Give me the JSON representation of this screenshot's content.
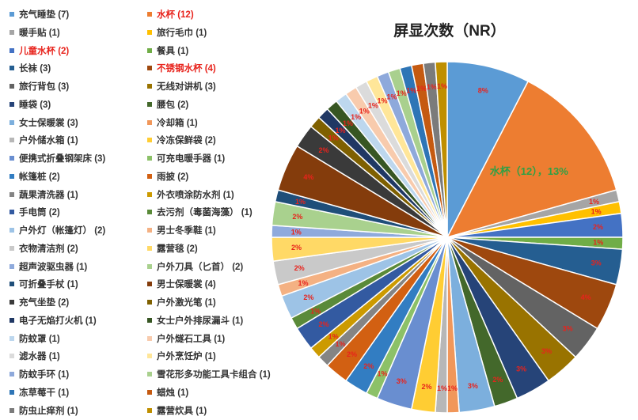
{
  "chart_data": {
    "type": "pie",
    "title": "屏显次数（NR）",
    "legend_position": "left",
    "highlighted": [
      "水杯",
      "儿童水杯",
      "不锈钢水杯"
    ],
    "callout": {
      "category": "水杯",
      "text": "水杯（12），13%"
    },
    "slices": [
      {
        "label": "充气睡垫（7）",
        "legend": "充气睡垫  (7)",
        "name": "充气睡垫",
        "value": 7,
        "pct": "8%",
        "color": "#5b9bd5"
      },
      {
        "label": "水杯（12）",
        "legend": "水杯  (12)",
        "name": "水杯",
        "value": 12,
        "pct": "13%",
        "color": "#ed7d31"
      },
      {
        "label": "暖手贴（1）",
        "legend": "暖手贴  (1)",
        "name": "暖手贴",
        "value": 1,
        "pct": "1%",
        "color": "#a5a5a5"
      },
      {
        "label": "旅行毛巾（1）",
        "legend": "旅行毛巾  (1)",
        "name": "旅行毛巾",
        "value": 1,
        "pct": "1%",
        "color": "#ffc000"
      },
      {
        "label": "儿童水杯（2）",
        "legend": "儿童水杯  (2)",
        "name": "儿童水杯",
        "value": 2,
        "pct": "2%",
        "color": "#4472c4"
      },
      {
        "label": "餐具（1）",
        "legend": "餐具  (1)",
        "name": "餐具",
        "value": 1,
        "pct": "1%",
        "color": "#70ad47"
      },
      {
        "label": "长袜（3）",
        "legend": "长袜  (3)",
        "name": "长袜",
        "value": 3,
        "pct": "3%",
        "color": "#255e91"
      },
      {
        "label": "不锈钢水杯（4）",
        "legend": "不锈钢水杯  (4)",
        "name": "不锈钢水杯",
        "value": 4,
        "pct": "4%",
        "color": "#9e480e"
      },
      {
        "label": "旅行背包（3）",
        "legend": "旅行背包  (3)",
        "name": "旅行背包",
        "value": 3,
        "pct": "3%",
        "color": "#636363"
      },
      {
        "label": "无线对讲机（3）",
        "legend": "无线对讲机  (3)",
        "name": "无线对讲机",
        "value": 3,
        "pct": "3%",
        "color": "#997300"
      },
      {
        "label": "睡袋（3）",
        "legend": "睡袋  (3)",
        "name": "睡袋",
        "value": 3,
        "pct": "3%",
        "color": "#264478"
      },
      {
        "label": "腰包（2）",
        "legend": "腰包  (2)",
        "name": "腰包",
        "value": 2,
        "pct": "2%",
        "color": "#43682b"
      },
      {
        "label": "女士保暖裳（3）",
        "legend": "女士保暖裳  (3)",
        "name": "女士保暖裳",
        "value": 3,
        "pct": "3%",
        "color": "#7cafdd"
      },
      {
        "label": "冷却箱（1）",
        "legend": "冷却箱  (1)",
        "name": "冷却箱",
        "value": 1,
        "pct": "1%",
        "color": "#f1975a"
      },
      {
        "label": "户外储水箱（1）",
        "legend": "户外储水箱  (1)",
        "name": "户外储水箱",
        "value": 1,
        "pct": "1%",
        "color": "#b7b7b7"
      },
      {
        "label": "冷冻保鲜袋（2）",
        "legend": "冷冻保鲜袋  (2)",
        "name": "冷冻保鲜袋",
        "value": 2,
        "pct": "2%",
        "color": "#ffcd33"
      },
      {
        "label": "便携式折叠钢架床（3）",
        "legend": "便携式折叠钢架床  (3)",
        "name": "便携式折叠钢架床",
        "value": 3,
        "pct": "3%",
        "color": "#698ed0"
      },
      {
        "label": "可充电暖手器（1）",
        "legend": "可充电暖手器  (1)",
        "name": "可充电暖手器",
        "value": 1,
        "pct": "1%",
        "color": "#8cc168"
      },
      {
        "label": "帐篷桩（2）",
        "legend": "帐篷桩  (2)",
        "name": "帐篷桩",
        "value": 2,
        "pct": "2%",
        "color": "#327dc2"
      },
      {
        "label": "雨披（2）",
        "legend": "雨披  (2)",
        "name": "雨披",
        "value": 2,
        "pct": "2%",
        "color": "#d26012"
      },
      {
        "label": "蔬果清洗器（1）",
        "legend": "蔬果清洗器  (1)",
        "name": "蔬果清洗器",
        "value": 1,
        "pct": "1%",
        "color": "#848484"
      },
      {
        "label": "外衣喷涂防水剂（1）",
        "legend": "外衣喷涂防水剂  (1)",
        "name": "外衣喷涂防水剂",
        "value": 1,
        "pct": "1%",
        "color": "#cc9a00"
      },
      {
        "label": "手电筒（2）",
        "legend": "手电筒  (2)",
        "name": "手电筒",
        "value": 2,
        "pct": "2%",
        "color": "#335aa1"
      },
      {
        "label": "去污剂（毒菌海藻）（1）",
        "legend": "去污剂（毒菌海藻）  (1)",
        "name": "去污剂（毒菌海藻）",
        "value": 1,
        "pct": "1%",
        "color": "#5a8a39"
      },
      {
        "label": "户外灯（帐篷灯）（2）",
        "legend": "户外灯（帐篷灯）  (2)",
        "name": "户外灯（帐篷灯）",
        "value": 2,
        "pct": "2%",
        "color": "#9dc3e6"
      },
      {
        "label": "男士冬季鞋（1）",
        "legend": "男士冬季鞋  (1)",
        "name": "男士冬季鞋",
        "value": 1,
        "pct": "1%",
        "color": "#f4b183"
      },
      {
        "label": "衣物清洁剂（2）",
        "legend": "衣物清洁剂  (2)",
        "name": "衣物清洁剂",
        "value": 2,
        "pct": "2%",
        "color": "#c9c9c9"
      },
      {
        "label": "露营毯（2）",
        "legend": "露营毯  (2)",
        "name": "露营毯",
        "value": 2,
        "pct": "2%",
        "color": "#ffd966"
      },
      {
        "label": "超声波驱虫器（1）",
        "legend": "超声波驱虫器  (1)",
        "name": "超声波驱虫器",
        "value": 1,
        "pct": "1%",
        "color": "#8faadc"
      },
      {
        "label": "户外刀具（匕首）（2）",
        "legend": "户外刀具（匕首）  (2)",
        "name": "户外刀具（匕首）",
        "value": 2,
        "pct": "2%",
        "color": "#a9d18e"
      },
      {
        "label": "可折叠手杖（1）",
        "legend": "可折叠手杖  (1)",
        "name": "可折叠手杖",
        "value": 1,
        "pct": "1%",
        "color": "#1f4e79"
      },
      {
        "label": "男士保暖裳（4）",
        "legend": "男士保暖裳  (4)",
        "name": "男士保暖裳",
        "value": 4,
        "pct": "4%",
        "color": "#843c0c"
      },
      {
        "label": "充气坐垫（2）",
        "legend": "充气坐垫  (2)",
        "name": "充气坐垫",
        "value": 2,
        "pct": "2%",
        "color": "#3a3a3a"
      },
      {
        "label": "户外激光笔（1）",
        "legend": "户外激光笔  (1)",
        "name": "户外激光笔",
        "value": 1,
        "pct": "1%",
        "color": "#7f6000"
      },
      {
        "label": "电子无焰打火机（1）",
        "legend": "电子无焰打火机  (1)",
        "name": "电子无焰打火机",
        "value": 1,
        "pct": "1%",
        "color": "#203864"
      },
      {
        "label": "女士户外排尿漏斗（1）",
        "legend": "女士户外排尿漏斗  (1)",
        "name": "女士户外排尿漏斗",
        "value": 1,
        "pct": "1%",
        "color": "#375623"
      },
      {
        "label": "防蚊罩（1）",
        "legend": "防蚊罩  (1)",
        "name": "防蚊罩",
        "value": 1,
        "pct": "1%",
        "color": "#bdd7ee"
      },
      {
        "label": "户外燧石工具（1）",
        "legend": "户外燧石工具  (1)",
        "name": "户外燧石工具",
        "value": 1,
        "pct": "1%",
        "color": "#f8cbad"
      },
      {
        "label": "滤水器（1）",
        "legend": "滤水器  (1)",
        "name": "滤水器",
        "value": 1,
        "pct": "1%",
        "color": "#dbdbdb"
      },
      {
        "label": "户外烹饪炉（1）",
        "legend": "户外烹饪炉  (1)",
        "name": "户外烹饪炉",
        "value": 1,
        "pct": "1%",
        "color": "#ffe699"
      },
      {
        "label": "防蚊手环（1）",
        "legend": "防蚊手环  (1)",
        "name": "防蚊手环",
        "value": 1,
        "pct": "1%",
        "color": "#8ea9db"
      },
      {
        "label": "雪花形多功能工具卡组合（1）",
        "legend": "雪花形多功能工具卡组合  (1)",
        "name": "雪花形多功能工具卡组合",
        "value": 1,
        "pct": "1%",
        "color": "#a9d08e"
      },
      {
        "label": "冻草莓干（1）",
        "legend": "冻草莓干  (1)",
        "name": "冻草莓干",
        "value": 1,
        "pct": "1%",
        "color": "#2e75b6"
      },
      {
        "label": "蜡烛（1）",
        "legend": "蜡烛  (1)",
        "name": "蜡烛",
        "value": 1,
        "pct": "1%",
        "color": "#c55a11"
      },
      {
        "label": "防虫止痒剂（1）",
        "legend": "防虫止痒剂  (1)",
        "name": "防虫止痒剂",
        "value": 1,
        "pct": "1%",
        "color": "#7b7b7b"
      },
      {
        "label": "露营炊具（1）",
        "legend": "露营炊具  (1)",
        "name": "露营炊具",
        "value": 1,
        "pct": "1%",
        "color": "#bf8f00"
      }
    ]
  }
}
